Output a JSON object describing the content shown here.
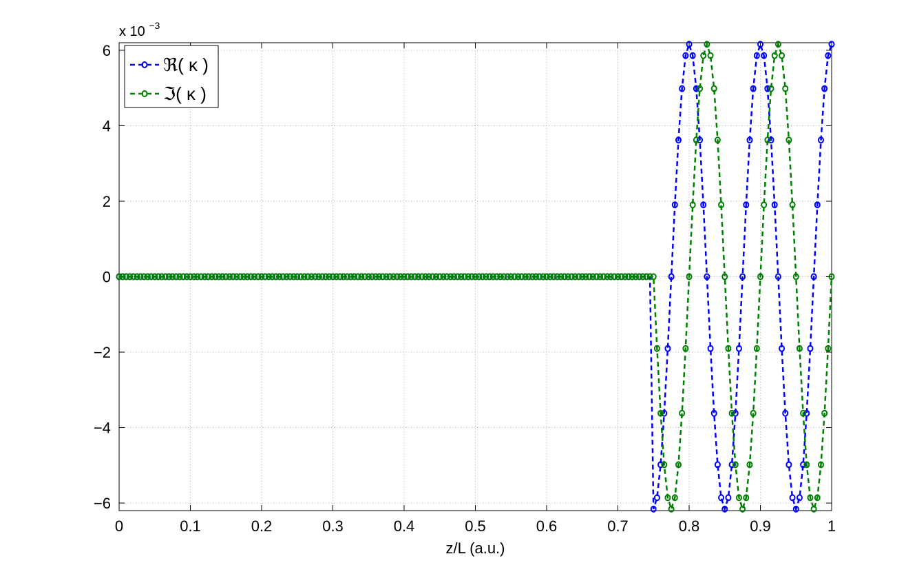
{
  "chart_data": {
    "type": "line",
    "xlabel": "z/L (a.u.)",
    "ylabel": "",
    "xlim": [
      0,
      1
    ],
    "ylim": [
      -6.2,
      6.2
    ],
    "y_scale_label": "x 10",
    "y_scale_exponent": "−3",
    "grid": true,
    "legend_position": "top-left",
    "x_ticks": [
      0,
      0.1,
      0.2,
      0.3,
      0.4,
      0.5,
      0.6,
      0.7,
      0.8,
      0.9,
      1
    ],
    "x_tick_labels": [
      "0",
      "0.1",
      "0.2",
      "0.3",
      "0.4",
      "0.5",
      "0.6",
      "0.7",
      "0.8",
      "0.9",
      "1"
    ],
    "y_ticks": [
      -6,
      -4,
      -2,
      0,
      2,
      4,
      6
    ],
    "y_tick_labels": [
      "−6",
      "−4",
      "−2",
      "0",
      "2",
      "4",
      "6"
    ],
    "sample_step": 0.005,
    "series": [
      {
        "name": "ℜ( κ )",
        "color": "#0000ff",
        "style": "dashed-circle-markers",
        "zero_until": 0.75,
        "amplitude": 6.16,
        "period": 0.1,
        "phase": "sine-shifted: y = -A·cos(2π(x-0.75)/0.1)"
      },
      {
        "name": "ℑ( κ )",
        "color": "#008000",
        "style": "dashed-circle-markers",
        "zero_until": 0.75,
        "amplitude": 6.16,
        "period": 0.1,
        "phase": "y = -A·sin(2π(x-0.75)/0.1)"
      }
    ]
  }
}
